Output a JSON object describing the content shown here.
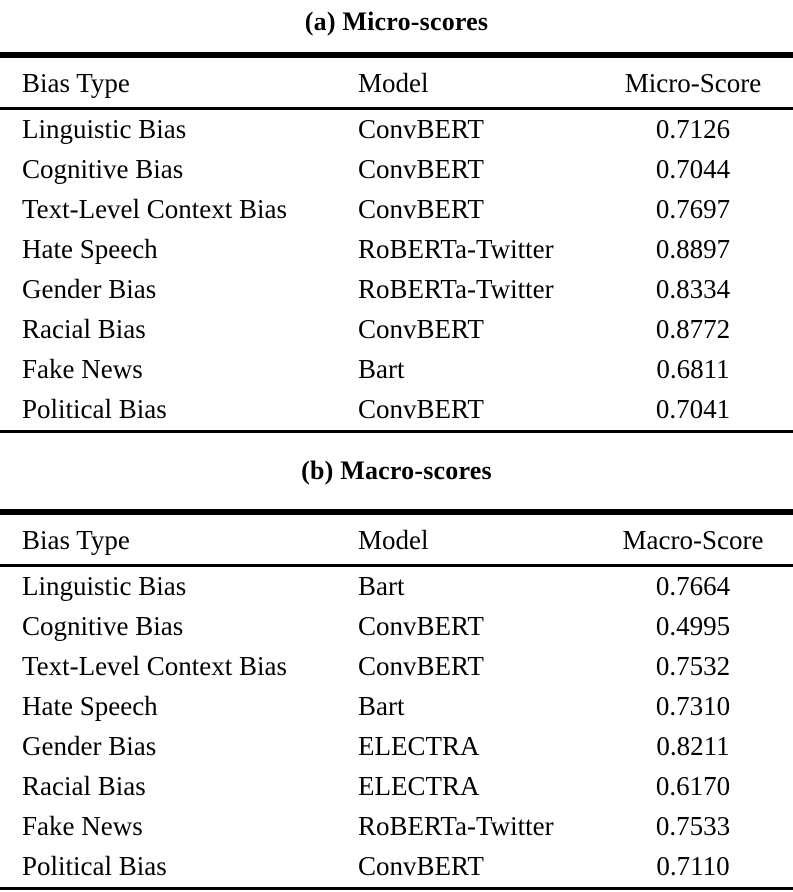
{
  "page": {
    "background_color": "#ffffff",
    "text_color": "#000000",
    "rule_color": "#000000"
  },
  "tables": [
    {
      "caption": "(a) Micro-scores",
      "columns": {
        "bias_type": "Bias Type",
        "model": "Model",
        "score": "Micro-Score"
      },
      "rows": [
        {
          "bias_type": "Linguistic Bias",
          "model": "ConvBERT",
          "score": "0.7126"
        },
        {
          "bias_type": "Cognitive Bias",
          "model": "ConvBERT",
          "score": "0.7044"
        },
        {
          "bias_type": "Text-Level Context Bias",
          "model": "ConvBERT",
          "score": "0.7697"
        },
        {
          "bias_type": "Hate Speech",
          "model": "RoBERTa-Twitter",
          "score": "0.8897"
        },
        {
          "bias_type": "Gender Bias",
          "model": "RoBERTa-Twitter",
          "score": "0.8334"
        },
        {
          "bias_type": "Racial Bias",
          "model": "ConvBERT",
          "score": "0.8772"
        },
        {
          "bias_type": "Fake News",
          "model": "Bart",
          "score": "0.6811"
        },
        {
          "bias_type": "Political Bias",
          "model": "ConvBERT",
          "score": "0.7041"
        }
      ]
    },
    {
      "caption": "(b) Macro-scores",
      "columns": {
        "bias_type": "Bias Type",
        "model": "Model",
        "score": "Macro-Score"
      },
      "rows": [
        {
          "bias_type": "Linguistic Bias",
          "model": "Bart",
          "score": "0.7664"
        },
        {
          "bias_type": "Cognitive Bias",
          "model": "ConvBERT",
          "score": "0.4995"
        },
        {
          "bias_type": "Text-Level Context Bias",
          "model": "ConvBERT",
          "score": "0.7532"
        },
        {
          "bias_type": "Hate Speech",
          "model": "Bart",
          "score": "0.7310"
        },
        {
          "bias_type": "Gender Bias",
          "model": "ELECTRA",
          "score": "0.8211"
        },
        {
          "bias_type": "Racial Bias",
          "model": "ELECTRA",
          "score": "0.6170"
        },
        {
          "bias_type": "Fake News",
          "model": "RoBERTa-Twitter",
          "score": "0.7533"
        },
        {
          "bias_type": "Political Bias",
          "model": "ConvBERT",
          "score": "0.7110"
        }
      ]
    }
  ]
}
